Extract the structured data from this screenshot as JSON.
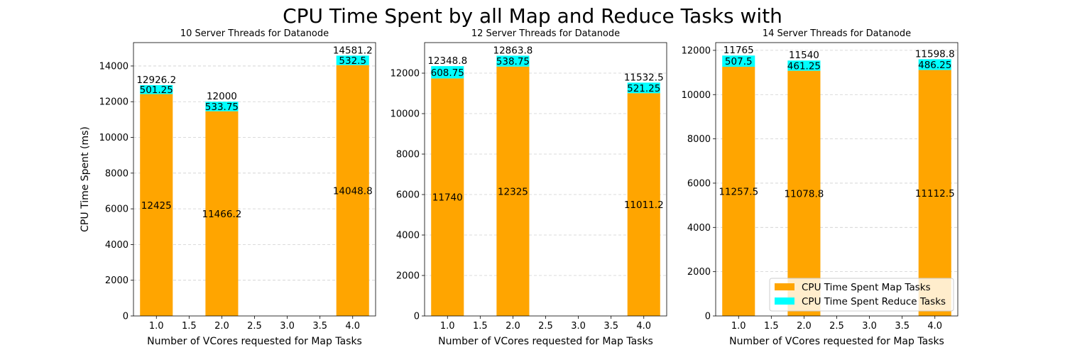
{
  "figure": {
    "title": "CPU Time Spent by all Map and Reduce Tasks with"
  },
  "legend": {
    "placement": "lower-right",
    "entries": [
      {
        "label": "CPU Time Spent Map Tasks",
        "color": "#FFA500"
      },
      {
        "label": "CPU Time Spent Reduce Tasks",
        "color": "#00FFFF"
      }
    ]
  },
  "chart_data": [
    {
      "type": "bar",
      "stacked": true,
      "title": "10 Server Threads for Datanode",
      "xlabel": "Number of VCores requested for Map Tasks",
      "ylabel": "CPU Time Spent (ms)",
      "x": [
        1.0,
        2.0,
        4.0
      ],
      "xlim": [
        0.65,
        4.35
      ],
      "xticks": [
        "1.0",
        "1.5",
        "2.0",
        "2.5",
        "3.0",
        "3.5",
        "4.0"
      ],
      "ylim": [
        0,
        15310
      ],
      "yticks": [
        "0",
        "2000",
        "4000",
        "6000",
        "8000",
        "10000",
        "12000",
        "14000"
      ],
      "grid": "y-dashed",
      "series": [
        {
          "name": "CPU Time Spent Map Tasks",
          "color": "#FFA500",
          "values": [
            12425,
            11466.2,
            14048.8
          ],
          "labels": [
            "12425",
            "11466.2",
            "14048.8"
          ]
        },
        {
          "name": "CPU Time Spent Reduce Tasks",
          "color": "#00FFFF",
          "values": [
            501.25,
            533.75,
            532.5
          ],
          "labels": [
            "501.25",
            "533.75",
            "532.5"
          ]
        }
      ],
      "totals": [
        "12926.2",
        "12000",
        "14581.2"
      ]
    },
    {
      "type": "bar",
      "stacked": true,
      "title": "12 Server Threads for Datanode",
      "xlabel": "Number of VCores requested for Map Tasks",
      "ylabel": "",
      "x": [
        1.0,
        2.0,
        4.0
      ],
      "xlim": [
        0.65,
        4.35
      ],
      "xticks": [
        "1.0",
        "1.5",
        "2.0",
        "2.5",
        "3.0",
        "3.5",
        "4.0"
      ],
      "ylim": [
        0,
        13510
      ],
      "yticks": [
        "0",
        "2000",
        "4000",
        "6000",
        "8000",
        "10000",
        "12000"
      ],
      "grid": "y-dashed",
      "series": [
        {
          "name": "CPU Time Spent Map Tasks",
          "color": "#FFA500",
          "values": [
            11740,
            12325,
            11011.2
          ],
          "labels": [
            "11740",
            "12325",
            "11011.2"
          ]
        },
        {
          "name": "CPU Time Spent Reduce Tasks",
          "color": "#00FFFF",
          "values": [
            608.75,
            538.75,
            521.25
          ],
          "labels": [
            "608.75",
            "538.75",
            "521.25"
          ]
        }
      ],
      "totals": [
        "12348.8",
        "12863.8",
        "11532.5"
      ]
    },
    {
      "type": "bar",
      "stacked": true,
      "title": "14 Server Threads for Datanode",
      "xlabel": "Number of VCores requested for Map Tasks",
      "ylabel": "",
      "x": [
        1.0,
        2.0,
        4.0
      ],
      "xlim": [
        0.65,
        4.35
      ],
      "xticks": [
        "1.0",
        "1.5",
        "2.0",
        "2.5",
        "3.0",
        "3.5",
        "4.0"
      ],
      "ylim": [
        0,
        12350
      ],
      "yticks": [
        "0",
        "2000",
        "4000",
        "6000",
        "8000",
        "10000",
        "12000"
      ],
      "grid": "y-dashed",
      "series": [
        {
          "name": "CPU Time Spent Map Tasks",
          "color": "#FFA500",
          "values": [
            11257.5,
            11078.8,
            11112.5
          ],
          "labels": [
            "11257.5",
            "11078.8",
            "11112.5"
          ]
        },
        {
          "name": "CPU Time Spent Reduce Tasks",
          "color": "#00FFFF",
          "values": [
            507.5,
            461.25,
            486.25
          ],
          "labels": [
            "507.5",
            "461.25",
            "486.25"
          ]
        }
      ],
      "totals": [
        "11765",
        "11540",
        "11598.8"
      ]
    }
  ]
}
